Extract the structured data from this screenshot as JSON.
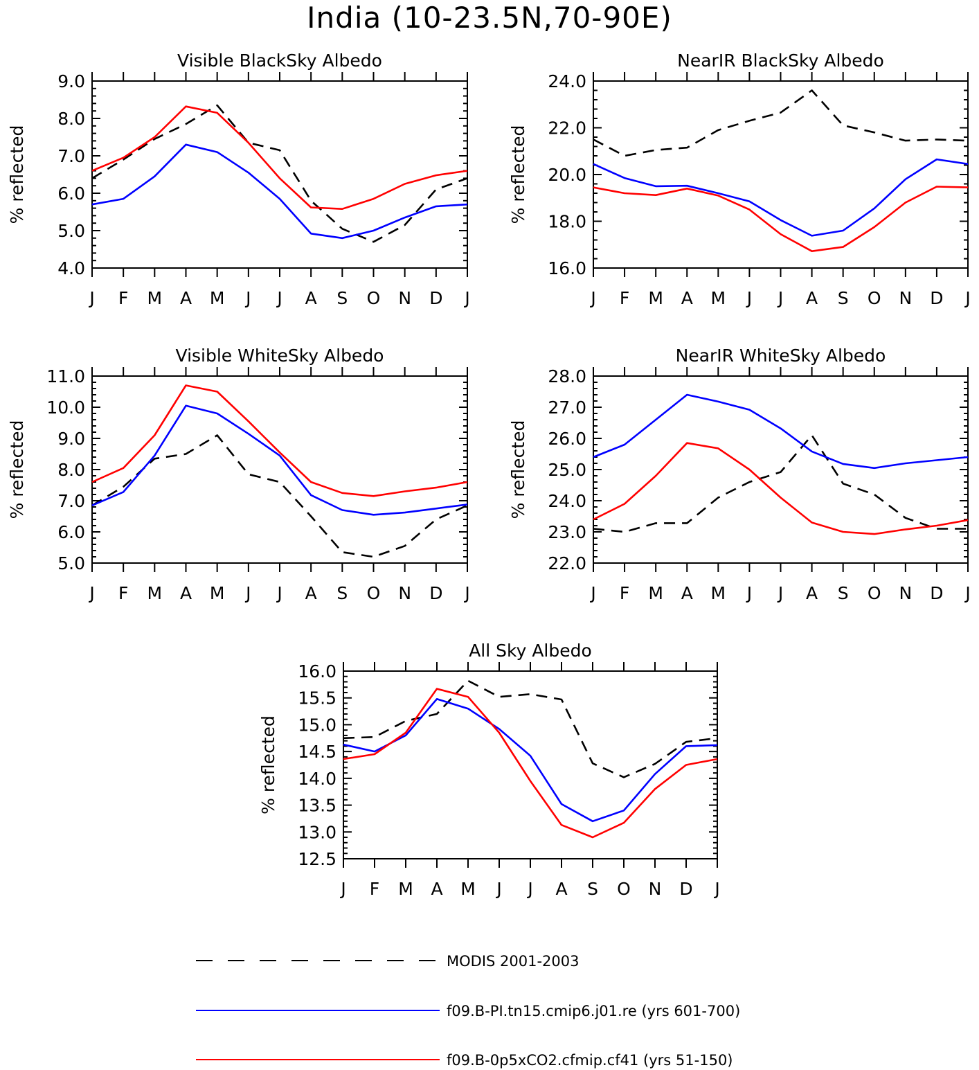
{
  "title": "India (10-23.5N,70-90E)",
  "colors": {
    "modis": "#000000",
    "pi": "#0000ff",
    "co2": "#ff0000"
  },
  "legend": [
    {
      "key": "modis",
      "label": "MODIS 2001-2003",
      "style": "dashed"
    },
    {
      "key": "pi",
      "label": "f09.B-PI.tn15.cmip6.j01.re (yrs 601-700)",
      "style": "solid"
    },
    {
      "key": "co2",
      "label": "f09.B-0p5xCO2.cfmip.cf41 (yrs 51-150)",
      "style": "solid"
    }
  ],
  "chart_data": [
    {
      "type": "line",
      "title": "Visible BlackSky Albedo",
      "ylabel": "% reflected",
      "categories": [
        "J",
        "F",
        "M",
        "A",
        "M",
        "J",
        "J",
        "A",
        "S",
        "O",
        "N",
        "D",
        "J"
      ],
      "ylim": [
        4.0,
        9.0
      ],
      "yticks": [
        "4.0",
        "5.0",
        "6.0",
        "7.0",
        "8.0",
        "9.0"
      ],
      "series": [
        {
          "key": "modis",
          "name": "MODIS 2001-2003",
          "values": [
            6.4,
            6.9,
            7.45,
            7.85,
            8.35,
            7.35,
            7.15,
            5.8,
            5.05,
            4.7,
            5.15,
            6.1,
            6.4
          ]
        },
        {
          "key": "pi",
          "name": "f09.B-PI.tn15.cmip6.j01.re (yrs 601-700)",
          "values": [
            5.7,
            5.85,
            6.45,
            7.3,
            7.1,
            6.55,
            5.85,
            4.92,
            4.8,
            5.0,
            5.35,
            5.65,
            5.7
          ]
        },
        {
          "key": "co2",
          "name": "f09.B-0p5xCO2.cfmip.cf41 (yrs 51-150)",
          "values": [
            6.6,
            6.95,
            7.5,
            8.32,
            8.15,
            7.35,
            6.4,
            5.62,
            5.58,
            5.85,
            6.25,
            6.48,
            6.6
          ]
        }
      ]
    },
    {
      "type": "line",
      "title": "NearIR BlackSky Albedo",
      "ylabel": "% reflected",
      "categories": [
        "J",
        "F",
        "M",
        "A",
        "M",
        "J",
        "J",
        "A",
        "S",
        "O",
        "N",
        "D",
        "J"
      ],
      "ylim": [
        16.0,
        24.0
      ],
      "yticks": [
        "16.0",
        "18.0",
        "20.0",
        "22.0",
        "24.0"
      ],
      "series": [
        {
          "key": "modis",
          "name": "MODIS 2001-2003",
          "values": [
            21.5,
            20.8,
            21.05,
            21.15,
            21.9,
            22.3,
            22.65,
            23.6,
            22.1,
            21.8,
            21.45,
            21.5,
            21.45
          ]
        },
        {
          "key": "pi",
          "name": "f09.B-PI.tn15.cmip6.j01.re (yrs 601-700)",
          "values": [
            20.45,
            19.85,
            19.5,
            19.52,
            19.2,
            18.85,
            18.05,
            17.38,
            17.6,
            18.55,
            19.8,
            20.65,
            20.45
          ]
        },
        {
          "key": "co2",
          "name": "f09.B-0p5xCO2.cfmip.cf41 (yrs 51-150)",
          "values": [
            19.45,
            19.2,
            19.12,
            19.4,
            19.1,
            18.5,
            17.45,
            16.72,
            16.9,
            17.75,
            18.8,
            19.48,
            19.45
          ]
        }
      ]
    },
    {
      "type": "line",
      "title": "Visible WhiteSky Albedo",
      "ylabel": "% reflected",
      "categories": [
        "J",
        "F",
        "M",
        "A",
        "M",
        "J",
        "J",
        "A",
        "S",
        "O",
        "N",
        "D",
        "J"
      ],
      "ylim": [
        5.0,
        11.0
      ],
      "yticks": [
        "5.0",
        "6.0",
        "7.0",
        "8.0",
        "9.0",
        "10.0",
        "11.0"
      ],
      "series": [
        {
          "key": "modis",
          "name": "MODIS 2001-2003",
          "values": [
            6.85,
            7.45,
            8.35,
            8.5,
            9.1,
            7.85,
            7.6,
            6.5,
            5.35,
            5.2,
            5.55,
            6.4,
            6.85
          ]
        },
        {
          "key": "pi",
          "name": "f09.B-PI.tn15.cmip6.j01.re (yrs 601-700)",
          "values": [
            6.85,
            7.28,
            8.45,
            10.05,
            9.8,
            9.15,
            8.45,
            7.18,
            6.7,
            6.55,
            6.62,
            6.75,
            6.88
          ]
        },
        {
          "key": "co2",
          "name": "f09.B-0p5xCO2.cfmip.cf41 (yrs 51-150)",
          "values": [
            7.6,
            8.05,
            9.1,
            10.7,
            10.5,
            9.55,
            8.55,
            7.6,
            7.25,
            7.15,
            7.3,
            7.42,
            7.6
          ]
        }
      ]
    },
    {
      "type": "line",
      "title": "NearIR WhiteSky Albedo",
      "ylabel": "% reflected",
      "categories": [
        "J",
        "F",
        "M",
        "A",
        "M",
        "J",
        "J",
        "A",
        "S",
        "O",
        "N",
        "D",
        "J"
      ],
      "ylim": [
        22.0,
        28.0
      ],
      "yticks": [
        "22.0",
        "23.0",
        "24.0",
        "25.0",
        "26.0",
        "27.0",
        "28.0"
      ],
      "series": [
        {
          "key": "modis",
          "name": "MODIS 2001-2003",
          "values": [
            23.1,
            23.0,
            23.28,
            23.28,
            24.1,
            24.6,
            24.92,
            26.1,
            24.55,
            24.2,
            23.45,
            23.1,
            23.1
          ]
        },
        {
          "key": "pi",
          "name": "f09.B-PI.tn15.cmip6.j01.re (yrs 601-700)",
          "values": [
            25.4,
            25.8,
            26.6,
            27.4,
            27.18,
            26.92,
            26.32,
            25.58,
            25.18,
            25.05,
            25.2,
            25.3,
            25.4
          ]
        },
        {
          "key": "co2",
          "name": "f09.B-0p5xCO2.cfmip.cf41 (yrs 51-150)",
          "values": [
            23.4,
            23.9,
            24.8,
            25.85,
            25.68,
            25.0,
            24.1,
            23.3,
            23.0,
            22.93,
            23.08,
            23.2,
            23.38
          ]
        }
      ]
    },
    {
      "type": "line",
      "title": "All Sky Albedo",
      "ylabel": "% reflected",
      "categories": [
        "J",
        "F",
        "M",
        "A",
        "M",
        "J",
        "J",
        "A",
        "S",
        "O",
        "N",
        "D",
        "J"
      ],
      "ylim": [
        12.5,
        16.0
      ],
      "yticks": [
        "12.5",
        "13.0",
        "13.5",
        "14.0",
        "14.5",
        "15.0",
        "15.5",
        "16.0"
      ],
      "series": [
        {
          "key": "modis",
          "name": "MODIS 2001-2003",
          "values": [
            14.75,
            14.77,
            15.07,
            15.2,
            15.82,
            15.52,
            15.57,
            15.47,
            14.28,
            14.02,
            14.27,
            14.68,
            14.75
          ]
        },
        {
          "key": "pi",
          "name": "f09.B-PI.tn15.cmip6.j01.re (yrs 601-700)",
          "values": [
            14.63,
            14.5,
            14.8,
            15.48,
            15.3,
            14.92,
            14.42,
            13.52,
            13.2,
            13.4,
            14.08,
            14.6,
            14.62
          ]
        },
        {
          "key": "co2",
          "name": "f09.B-0p5xCO2.cfmip.cf41 (yrs 51-150)",
          "values": [
            14.36,
            14.45,
            14.85,
            15.67,
            15.52,
            14.85,
            13.95,
            13.13,
            12.9,
            13.17,
            13.8,
            14.25,
            14.36
          ]
        }
      ]
    }
  ]
}
